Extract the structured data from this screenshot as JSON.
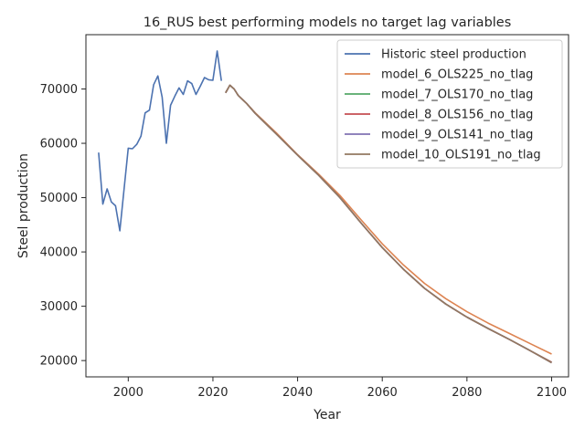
{
  "chart_data": {
    "type": "line",
    "title": "16_RUS best performing models no target lag variables",
    "xlabel": "Year",
    "ylabel": "Steel production",
    "xlim": [
      1990,
      2104
    ],
    "ylim": [
      17000,
      80000
    ],
    "xticks": [
      2000,
      2020,
      2040,
      2060,
      2080,
      2100
    ],
    "yticks": [
      20000,
      30000,
      40000,
      50000,
      60000,
      70000
    ],
    "grid": false,
    "legend_position": "top-right",
    "series": [
      {
        "name": "Historic steel production",
        "color": "#4c72b0",
        "x": [
          1993,
          1994,
          1995,
          1996,
          1997,
          1998,
          1999,
          2000,
          2001,
          2002,
          2003,
          2004,
          2005,
          2006,
          2007,
          2008,
          2009,
          2010,
          2011,
          2012,
          2013,
          2014,
          2015,
          2016,
          2017,
          2018,
          2019,
          2020,
          2021,
          2022
        ],
        "y": [
          58300,
          48800,
          51600,
          49200,
          48500,
          43900,
          51500,
          59100,
          59000,
          59800,
          61300,
          65600,
          66100,
          70800,
          72400,
          68500,
          60000,
          67000,
          68700,
          70200,
          69000,
          71500,
          71000,
          69000,
          70500,
          72100,
          71700,
          71600,
          77000,
          71500
        ]
      },
      {
        "name": "model_6_OLS225_no_tlag",
        "color": "#dd8452",
        "x": [
          2023,
          2024,
          2025,
          2026,
          2028,
          2030,
          2035,
          2040,
          2045,
          2050,
          2055,
          2060,
          2065,
          2070,
          2075,
          2080,
          2085,
          2090,
          2095,
          2100
        ],
        "y": [
          69300,
          70700,
          70000,
          68800,
          67300,
          65600,
          61900,
          57900,
          54300,
          50400,
          45900,
          41500,
          37600,
          34200,
          31400,
          29000,
          26900,
          25000,
          23100,
          21200
        ]
      },
      {
        "name": "model_7_OLS170_no_tlag",
        "color": "#55a868",
        "x": [
          2023,
          2024,
          2025,
          2026,
          2028,
          2030,
          2035,
          2040,
          2045,
          2050,
          2055,
          2060,
          2065,
          2070,
          2075,
          2080,
          2085,
          2090,
          2095,
          2100
        ],
        "y": [
          69300,
          70700,
          70000,
          68800,
          67300,
          65500,
          61700,
          57800,
          54100,
          50000,
          45300,
          40800,
          36800,
          33300,
          30400,
          28000,
          25900,
          23900,
          21800,
          19700
        ]
      },
      {
        "name": "model_8_OLS156_no_tlag",
        "color": "#c44e52",
        "x": [
          2023,
          2024,
          2025,
          2026,
          2028,
          2030,
          2035,
          2040,
          2045,
          2050,
          2055,
          2060,
          2065,
          2070,
          2075,
          2080,
          2085,
          2090,
          2095,
          2100
        ],
        "y": [
          69300,
          70700,
          70000,
          68800,
          67300,
          65500,
          61700,
          57800,
          54100,
          50000,
          45300,
          40800,
          36800,
          33300,
          30400,
          28000,
          25900,
          23900,
          21800,
          19700
        ]
      },
      {
        "name": "model_9_OLS141_no_tlag",
        "color": "#8172b3",
        "x": [
          2023,
          2024,
          2025,
          2026,
          2028,
          2030,
          2035,
          2040,
          2045,
          2050,
          2055,
          2060,
          2065,
          2070,
          2075,
          2080,
          2085,
          2090,
          2095,
          2100
        ],
        "y": [
          69300,
          70700,
          70000,
          68800,
          67300,
          65500,
          61700,
          57800,
          54100,
          50000,
          45300,
          40800,
          36800,
          33300,
          30400,
          28000,
          25900,
          23900,
          21800,
          19600
        ]
      },
      {
        "name": "model_10_OLS191_no_tlag",
        "color": "#937860",
        "x": [
          2023,
          2024,
          2025,
          2026,
          2028,
          2030,
          2035,
          2040,
          2045,
          2050,
          2055,
          2060,
          2065,
          2070,
          2075,
          2080,
          2085,
          2090,
          2095,
          2100
        ],
        "y": [
          69300,
          70700,
          70000,
          68800,
          67300,
          65500,
          61700,
          57800,
          54100,
          50000,
          45300,
          40800,
          36800,
          33300,
          30400,
          28000,
          25900,
          23900,
          21800,
          19600
        ]
      }
    ]
  }
}
